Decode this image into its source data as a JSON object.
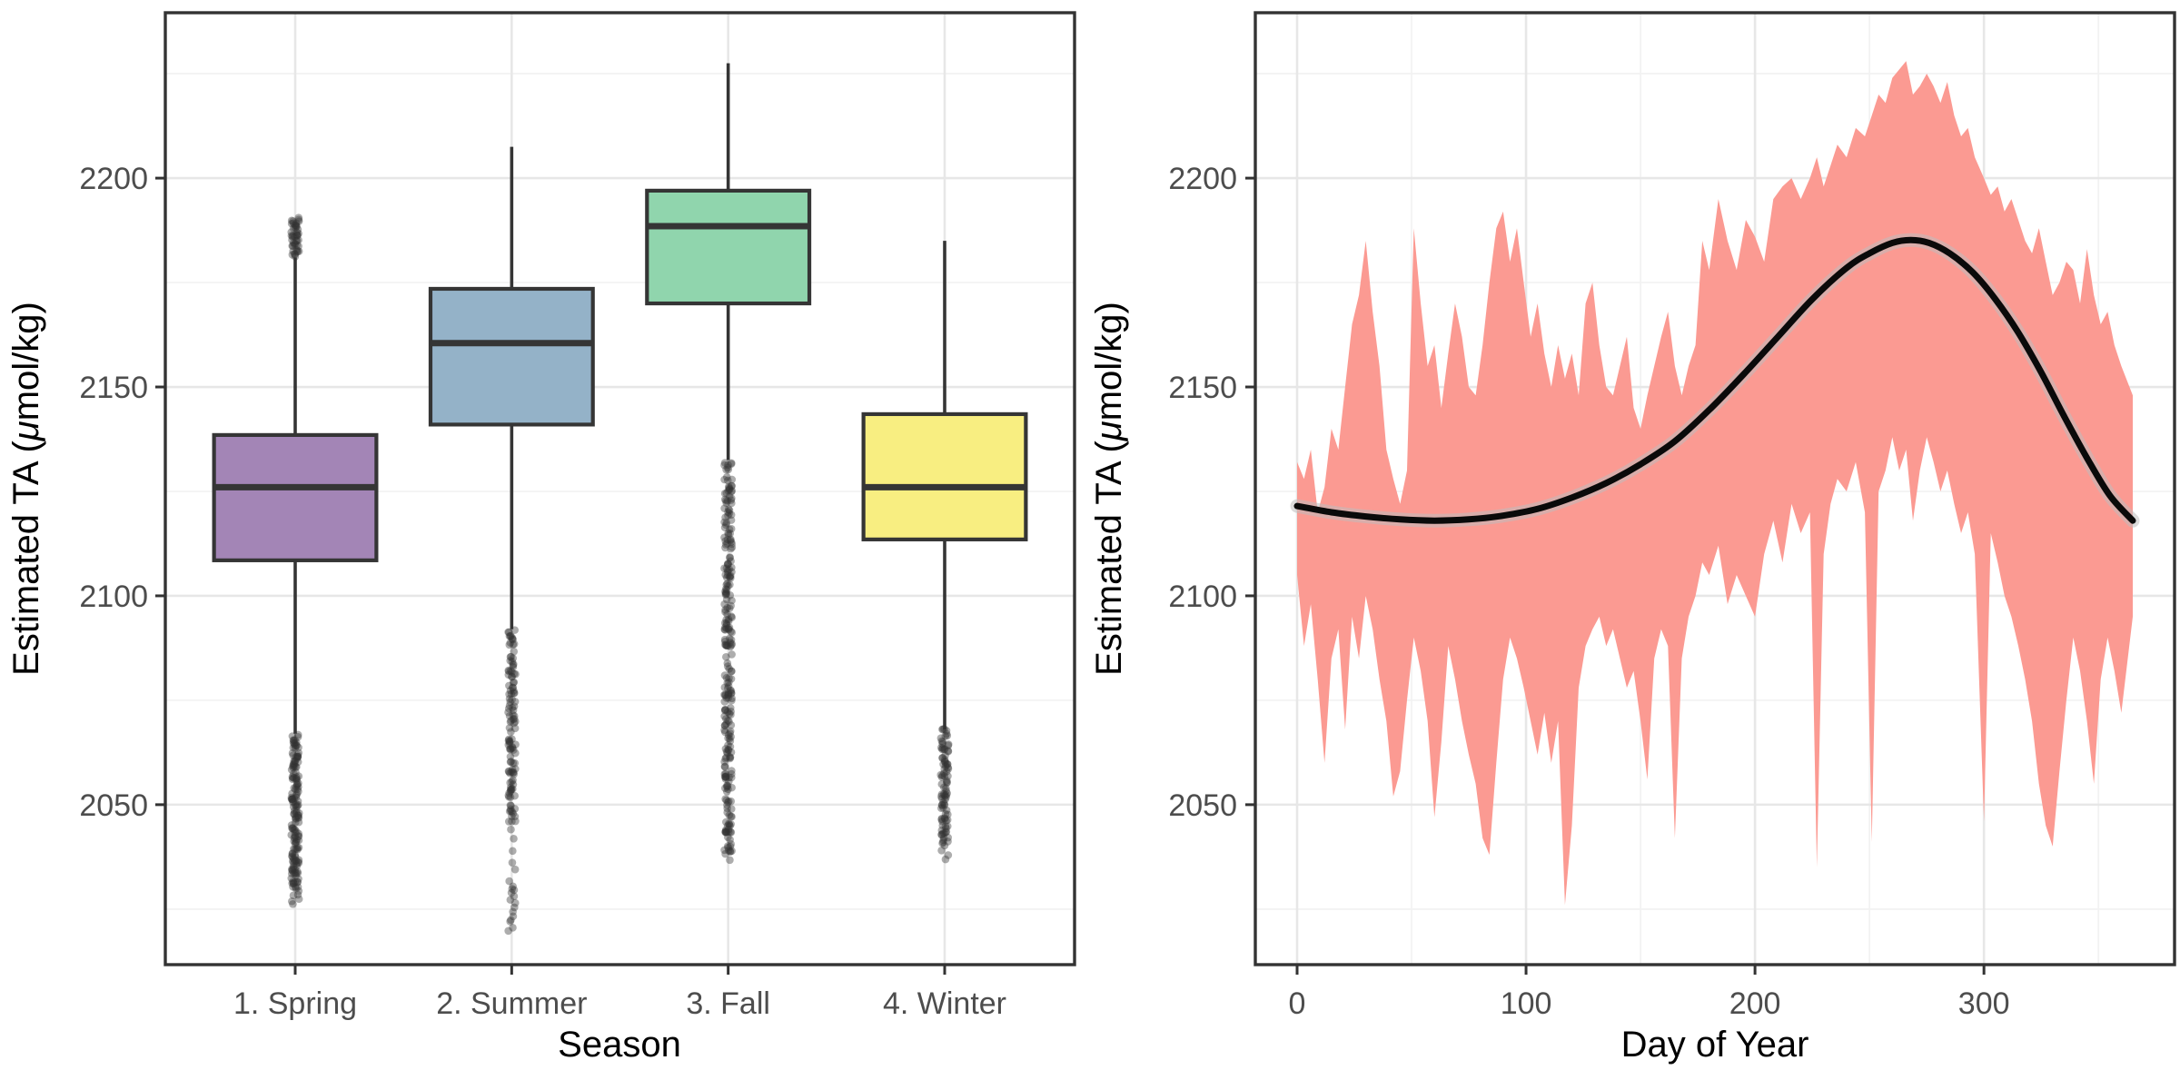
{
  "figure": {
    "background": "#FFFFFF"
  },
  "axes": {
    "y_title": {
      "prefix": "Estimated TA (",
      "mu": "μ",
      "suffix": "mol/kg)"
    },
    "y_ticks": [
      2050,
      2100,
      2150,
      2200
    ],
    "y_minor": [
      2025,
      2075,
      2125,
      2175,
      2225
    ],
    "ylim": [
      2011.7,
      2239.6
    ]
  },
  "style": {
    "panel_border": "#333333",
    "grid_major": "#E7E7E7",
    "grid_minor": "#F2F2F2",
    "tick_color": "#333333",
    "tick_label_color": "#4D4D4D",
    "axis_title_color": "#000000",
    "box_stroke": "#353535",
    "outlier_color": "#333333",
    "ribbon_color": "#FB9A92",
    "smooth_color": "#0A0A0A",
    "smooth_halo_color": "#BDBDBD"
  },
  "chart_data": [
    {
      "type": "boxplot",
      "xlabel": "Season",
      "ylabel": "Estimated TA (μmol/kg)",
      "categories": [
        "1. Spring",
        "2. Summer",
        "3. Fall",
        "4. Winter"
      ],
      "box_fill_colors": [
        "#A385B6",
        "#94B2C8",
        "#90D5AD",
        "#F8EE81"
      ],
      "ylim": [
        2011.7,
        2239.6
      ],
      "grid": true,
      "boxes": [
        {
          "category": "1. Spring",
          "whisker_low": 2067,
          "q1": 2108.5,
          "median": 2126,
          "q3": 2138.5,
          "whisker_high": 2181,
          "outliers_high": [
            {
              "from": 2181.5,
              "to": 2190.5,
              "count": 45
            }
          ],
          "outliers_low": [
            {
              "from": 2030,
              "to": 2066.5,
              "count": 160
            },
            {
              "from": 2026,
              "to": 2031,
              "count": 8
            }
          ]
        },
        {
          "category": "2. Summer",
          "whisker_low": 2092,
          "q1": 2141,
          "median": 2160.5,
          "q3": 2173.5,
          "whisker_high": 2207.5,
          "outliers_high": [],
          "outliers_low": [
            {
              "from": 2046,
              "to": 2091.5,
              "count": 120
            },
            {
              "from": 2032,
              "to": 2046,
              "count": 7
            },
            {
              "from": 2020,
              "to": 2031,
              "count": 14
            }
          ]
        },
        {
          "category": "3. Fall",
          "whisker_low": 2132.5,
          "q1": 2170,
          "median": 2188.5,
          "q3": 2197,
          "whisker_high": 2227.5,
          "outliers_high": [],
          "outliers_low": [
            {
              "from": 2039,
              "to": 2132,
              "count": 260
            },
            {
              "from": 2037,
              "to": 2040,
              "count": 4
            }
          ]
        },
        {
          "category": "4. Winter",
          "whisker_low": 2068,
          "q1": 2113.5,
          "median": 2126,
          "q3": 2143.5,
          "whisker_high": 2185,
          "outliers_high": [],
          "outliers_low": [
            {
              "from": 2041,
              "to": 2068,
              "count": 90
            },
            {
              "from": 2037,
              "to": 2042,
              "count": 6
            }
          ]
        }
      ]
    },
    {
      "type": "area",
      "xlabel": "Day of Year",
      "ylabel": "Estimated TA (μmol/kg)",
      "x_ticks": [
        0,
        100,
        200,
        300
      ],
      "x_minor": [
        50,
        150,
        250,
        350
      ],
      "xlim": [
        -18.25,
        383.25
      ],
      "ylim": [
        2011.7,
        2239.6
      ],
      "grid": true,
      "ribbon_points_day_hi_lo": [
        [
          0,
          2132,
          2105
        ],
        [
          3,
          2128,
          2088
        ],
        [
          6,
          2135,
          2098
        ],
        [
          9,
          2120,
          2080
        ],
        [
          12,
          2126,
          2060
        ],
        [
          15,
          2140,
          2085
        ],
        [
          18,
          2135,
          2092
        ],
        [
          21,
          2150,
          2068
        ],
        [
          24,
          2165,
          2095
        ],
        [
          27,
          2172,
          2085
        ],
        [
          30,
          2185,
          2100
        ],
        [
          33,
          2168,
          2092
        ],
        [
          36,
          2155,
          2080
        ],
        [
          39,
          2135,
          2070
        ],
        [
          42,
          2128,
          2052
        ],
        [
          45,
          2122,
          2058
        ],
        [
          48,
          2130,
          2075
        ],
        [
          51,
          2188,
          2090
        ],
        [
          54,
          2170,
          2082
        ],
        [
          57,
          2155,
          2070
        ],
        [
          60,
          2160,
          2047
        ],
        [
          63,
          2145,
          2065
        ],
        [
          66,
          2158,
          2088
        ],
        [
          69,
          2170,
          2080
        ],
        [
          72,
          2162,
          2070
        ],
        [
          75,
          2150,
          2062
        ],
        [
          78,
          2148,
          2055
        ],
        [
          81,
          2160,
          2042
        ],
        [
          84,
          2175,
          2038
        ],
        [
          87,
          2188,
          2060
        ],
        [
          90,
          2192,
          2080
        ],
        [
          93,
          2180,
          2090
        ],
        [
          96,
          2188,
          2085
        ],
        [
          99,
          2175,
          2078
        ],
        [
          102,
          2162,
          2070
        ],
        [
          105,
          2170,
          2062
        ],
        [
          108,
          2158,
          2072
        ],
        [
          111,
          2150,
          2060
        ],
        [
          114,
          2160,
          2070
        ],
        [
          117,
          2152,
          2026
        ],
        [
          120,
          2158,
          2045
        ],
        [
          123,
          2148,
          2078
        ],
        [
          126,
          2170,
          2088
        ],
        [
          129,
          2175,
          2092
        ],
        [
          132,
          2160,
          2095
        ],
        [
          135,
          2150,
          2088
        ],
        [
          138,
          2148,
          2092
        ],
        [
          141,
          2155,
          2085
        ],
        [
          144,
          2162,
          2078
        ],
        [
          147,
          2145,
          2082
        ],
        [
          150,
          2140,
          2070
        ],
        [
          153,
          2148,
          2056
        ],
        [
          156,
          2155,
          2085
        ],
        [
          159,
          2162,
          2092
        ],
        [
          162,
          2168,
          2088
        ],
        [
          165,
          2155,
          2042
        ],
        [
          168,
          2148,
          2085
        ],
        [
          171,
          2155,
          2095
        ],
        [
          174,
          2160,
          2100
        ],
        [
          177,
          2185,
          2108
        ],
        [
          180,
          2178,
          2105
        ],
        [
          184,
          2195,
          2112
        ],
        [
          188,
          2185,
          2098
        ],
        [
          192,
          2178,
          2105
        ],
        [
          196,
          2190,
          2100
        ],
        [
          200,
          2186,
          2095
        ],
        [
          204,
          2180,
          2110
        ],
        [
          208,
          2195,
          2118
        ],
        [
          212,
          2198,
          2108
        ],
        [
          216,
          2200,
          2122
        ],
        [
          220,
          2195,
          2115
        ],
        [
          224,
          2200,
          2120
        ],
        [
          227,
          2205,
          2035
        ],
        [
          230,
          2198,
          2110
        ],
        [
          233,
          2203,
          2122
        ],
        [
          236,
          2208,
          2128
        ],
        [
          240,
          2205,
          2125
        ],
        [
          244,
          2212,
          2132
        ],
        [
          248,
          2210,
          2120
        ],
        [
          251,
          2215,
          2041
        ],
        [
          254,
          2220,
          2125
        ],
        [
          257,
          2218,
          2130
        ],
        [
          260,
          2224,
          2138
        ],
        [
          263,
          2226,
          2130
        ],
        [
          266,
          2228,
          2135
        ],
        [
          269,
          2220,
          2118
        ],
        [
          272,
          2222,
          2130
        ],
        [
          275,
          2225,
          2138
        ],
        [
          278,
          2222,
          2132
        ],
        [
          281,
          2218,
          2125
        ],
        [
          284,
          2223,
          2130
        ],
        [
          287,
          2215,
          2122
        ],
        [
          290,
          2210,
          2115
        ],
        [
          293,
          2212,
          2120
        ],
        [
          296,
          2205,
          2110
        ],
        [
          300,
          2200,
          2046
        ],
        [
          303,
          2196,
          2115
        ],
        [
          306,
          2198,
          2108
        ],
        [
          309,
          2192,
          2100
        ],
        [
          312,
          2195,
          2095
        ],
        [
          315,
          2190,
          2088
        ],
        [
          318,
          2185,
          2080
        ],
        [
          321,
          2182,
          2070
        ],
        [
          324,
          2188,
          2055
        ],
        [
          327,
          2180,
          2045
        ],
        [
          330,
          2172,
          2040
        ],
        [
          333,
          2175,
          2058
        ],
        [
          336,
          2180,
          2075
        ],
        [
          339,
          2178,
          2090
        ],
        [
          342,
          2170,
          2082
        ],
        [
          345,
          2183,
          2070
        ],
        [
          348,
          2172,
          2055
        ],
        [
          351,
          2165,
          2080
        ],
        [
          354,
          2168,
          2090
        ],
        [
          357,
          2160,
          2082
        ],
        [
          360,
          2155,
          2072
        ],
        [
          365,
          2148,
          2095
        ]
      ],
      "smooth_points_day_value": [
        [
          0,
          2121.5
        ],
        [
          15,
          2120
        ],
        [
          30,
          2119
        ],
        [
          45,
          2118.3
        ],
        [
          60,
          2118
        ],
        [
          75,
          2118.3
        ],
        [
          90,
          2119.2
        ],
        [
          105,
          2120.8
        ],
        [
          120,
          2123.5
        ],
        [
          135,
          2127
        ],
        [
          150,
          2131.5
        ],
        [
          165,
          2137
        ],
        [
          180,
          2144.5
        ],
        [
          195,
          2153
        ],
        [
          210,
          2162
        ],
        [
          225,
          2171
        ],
        [
          240,
          2178.5
        ],
        [
          250,
          2182
        ],
        [
          260,
          2184.5
        ],
        [
          268,
          2185.2
        ],
        [
          276,
          2184.5
        ],
        [
          285,
          2182
        ],
        [
          295,
          2177.5
        ],
        [
          305,
          2171
        ],
        [
          315,
          2163
        ],
        [
          325,
          2153.5
        ],
        [
          335,
          2143
        ],
        [
          345,
          2133
        ],
        [
          355,
          2124
        ],
        [
          365,
          2118
        ]
      ]
    }
  ]
}
